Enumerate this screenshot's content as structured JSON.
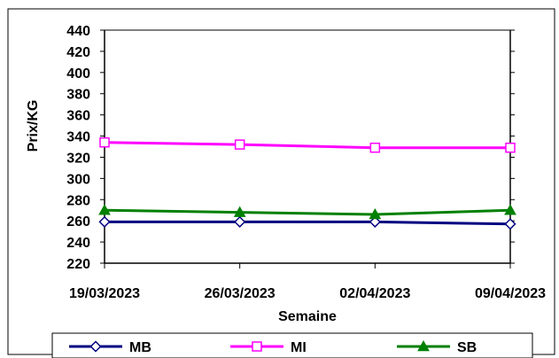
{
  "chart_data": {
    "type": "line",
    "title": "",
    "xlabel": "Semaine",
    "ylabel": "Prix/KG",
    "categories": [
      "19/03/2023",
      "26/03/2023",
      "02/04/2023",
      "09/04/2023"
    ],
    "ylim": [
      220,
      440
    ],
    "yticks": [
      220,
      240,
      260,
      280,
      300,
      320,
      340,
      360,
      380,
      400,
      420,
      440
    ],
    "grid": false,
    "legend_position": "bottom",
    "series": [
      {
        "name": "MB",
        "values": [
          259,
          259,
          259,
          257
        ],
        "color": "#000080",
        "marker": "diamond-open"
      },
      {
        "name": "MI",
        "values": [
          334,
          332,
          329,
          329
        ],
        "color": "#ff00ff",
        "marker": "square-open"
      },
      {
        "name": "SB",
        "values": [
          270,
          268,
          266,
          270
        ],
        "color": "#008000",
        "marker": "triangle-filled"
      }
    ]
  }
}
